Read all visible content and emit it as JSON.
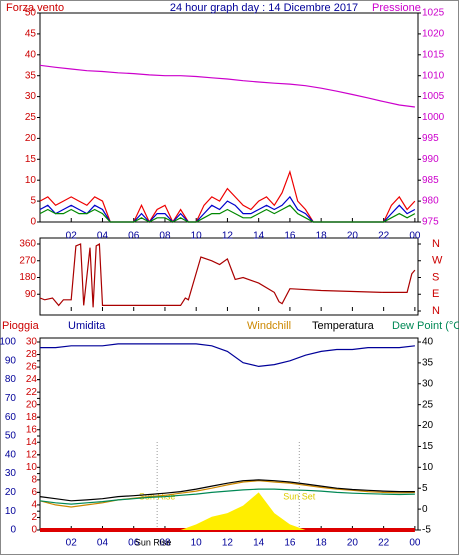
{
  "chart_data": [
    {
      "type": "line",
      "title": "24 hour graph day : 14 Dicembre 2017",
      "xlim": [
        0,
        24.2
      ],
      "xticks": [
        {
          "value": 2,
          "label": "02"
        },
        {
          "value": 4,
          "label": "04"
        },
        {
          "value": 6,
          "label": "06"
        },
        {
          "value": 8,
          "label": "08"
        },
        10,
        12,
        14,
        16,
        18,
        20,
        22,
        {
          "value": 24,
          "label": "00"
        }
      ],
      "ylim": [
        0,
        50
      ],
      "yticks": [
        0,
        5,
        10,
        15,
        20,
        25,
        30,
        35,
        40,
        45,
        50
      ],
      "ytick_color": "#cc0000",
      "y2lim": [
        975,
        1025
      ],
      "y2ticks": [
        975,
        980,
        985,
        990,
        995,
        1000,
        1005,
        1010,
        1015,
        1020,
        1025
      ],
      "y2tick_color": "#cc00cc",
      "series": [
        {
          "name": "Forza vento",
          "color": "#ee0000",
          "x": [
            0,
            0.5,
            1,
            1.5,
            2,
            2.5,
            3,
            3.5,
            4,
            4.5,
            5,
            5.5,
            6,
            6.5,
            7,
            7.5,
            8,
            8.5,
            9,
            9.5,
            10,
            10.5,
            11,
            11.5,
            12,
            12.5,
            13,
            13.5,
            14,
            14.5,
            15,
            15.5,
            16,
            16.5,
            17,
            17.5,
            18,
            18.5,
            19,
            19.5,
            20,
            20.5,
            21,
            21.5,
            22,
            22.5,
            23,
            23.5,
            24
          ],
          "values": [
            5,
            6,
            4,
            5,
            6,
            5,
            4,
            6,
            5,
            0,
            0,
            0,
            0,
            4,
            0,
            3,
            4,
            0,
            3,
            0,
            0,
            4,
            6,
            5,
            8,
            6,
            4,
            3,
            5,
            6,
            4,
            7,
            12,
            5,
            3,
            0,
            0,
            0,
            0,
            0,
            0,
            0,
            0,
            0,
            0,
            4,
            6,
            3,
            5
          ]
        },
        {
          "color": "#0000cc",
          "x": [
            0,
            0.5,
            1,
            1.5,
            2,
            2.5,
            3,
            3.5,
            4,
            4.5,
            5,
            5.5,
            6,
            6.5,
            7,
            7.5,
            8,
            8.5,
            9,
            9.5,
            10,
            10.5,
            11,
            11.5,
            12,
            12.5,
            13,
            13.5,
            14,
            14.5,
            15,
            15.5,
            16,
            16.5,
            17,
            17.5,
            18,
            18.5,
            19,
            19.5,
            20,
            20.5,
            21,
            21.5,
            22,
            22.5,
            23,
            23.5,
            24
          ],
          "values": [
            3,
            4,
            2,
            3,
            4,
            3,
            2,
            4,
            3,
            0,
            0,
            0,
            0,
            2,
            0,
            2,
            2,
            0,
            2,
            0,
            0,
            2,
            4,
            3,
            5,
            4,
            2,
            2,
            3,
            4,
            3,
            4,
            6,
            3,
            2,
            0,
            0,
            0,
            0,
            0,
            0,
            0,
            0,
            0,
            0,
            2,
            4,
            2,
            3
          ]
        },
        {
          "color": "#008800",
          "x": [
            0,
            0.5,
            1,
            1.5,
            2,
            2.5,
            3,
            3.5,
            4,
            4.5,
            5,
            5.5,
            6,
            6.5,
            7,
            7.5,
            8,
            8.5,
            9,
            9.5,
            10,
            10.5,
            11,
            11.5,
            12,
            12.5,
            13,
            13.5,
            14,
            14.5,
            15,
            15.5,
            16,
            16.5,
            17,
            17.5,
            18,
            18.5,
            19,
            19.5,
            20,
            20.5,
            21,
            21.5,
            22,
            22.5,
            23,
            23.5,
            24
          ],
          "values": [
            2,
            3,
            2,
            2,
            3,
            2,
            2,
            3,
            2,
            0,
            0,
            0,
            0,
            1,
            0,
            1,
            1,
            0,
            1,
            0,
            0,
            1,
            2,
            2,
            3,
            2,
            1,
            1,
            2,
            3,
            2,
            3,
            4,
            2,
            1,
            0,
            0,
            0,
            0,
            0,
            0,
            0,
            0,
            0,
            0,
            1,
            2,
            1,
            2
          ]
        },
        {
          "name": "Pressione",
          "color": "#cc00cc",
          "axis": "y2",
          "x": [
            0,
            1,
            2,
            3,
            4,
            5,
            6,
            7,
            8,
            9,
            10,
            11,
            12,
            13,
            14,
            15,
            16,
            17,
            18,
            19,
            20,
            21,
            22,
            23,
            24
          ],
          "values": [
            1012.5,
            1012,
            1011.6,
            1011.2,
            1011,
            1010.7,
            1010.5,
            1010.2,
            1010,
            1010,
            1009.8,
            1009.5,
            1009.2,
            1008.8,
            1008.5,
            1008.2,
            1008,
            1007.6,
            1007,
            1006.3,
            1005.5,
            1004.7,
            1003.8,
            1003,
            1002.5
          ]
        }
      ]
    },
    {
      "type": "line",
      "xlim": [
        0,
        24.2
      ],
      "xticks": [
        {
          "value": 2,
          "label": "02"
        },
        {
          "value": 4,
          "label": "04"
        },
        {
          "value": 6,
          "label": "06"
        },
        {
          "value": 8,
          "label": "08"
        },
        10,
        12,
        14,
        16,
        18,
        20,
        22,
        {
          "value": 24,
          "label": "00"
        }
      ],
      "ylim": [
        0,
        360
      ],
      "yticks": [
        90,
        180,
        270,
        360
      ],
      "ytick_color": "#cc0000",
      "y2lim": [
        0,
        360
      ],
      "y2ticks": [
        {
          "value": 360,
          "label": "N"
        },
        {
          "value": 270,
          "label": "W"
        },
        {
          "value": 180,
          "label": "S"
        },
        {
          "value": 90,
          "label": "E"
        },
        {
          "value": 0,
          "label": "N"
        }
      ],
      "y2tick_color": "#cc0000",
      "series": [
        {
          "color": "#aa0000",
          "x": [
            0,
            0.3,
            0.8,
            1.2,
            1.5,
            2,
            2.3,
            2.6,
            2.8,
            3.2,
            3.4,
            3.6,
            3.8,
            4,
            6,
            9,
            9.3,
            9.5,
            10.3,
            11,
            11.5,
            12,
            12.5,
            13,
            14,
            15,
            15.3,
            15.5,
            16,
            18,
            22,
            23.5,
            23.8,
            24
          ],
          "values": [
            70,
            60,
            70,
            30,
            60,
            60,
            350,
            360,
            30,
            340,
            20,
            350,
            360,
            30,
            30,
            30,
            70,
            60,
            290,
            270,
            250,
            280,
            170,
            180,
            150,
            100,
            50,
            40,
            120,
            110,
            100,
            100,
            200,
            220
          ]
        }
      ]
    },
    {
      "type": "line",
      "xlim": [
        0,
        24.2
      ],
      "xticks": [
        {
          "value": 2,
          "label": "02"
        },
        {
          "value": 4,
          "label": "04"
        },
        {
          "value": 6,
          "label": "06"
        },
        {
          "value": 8,
          "label": "08"
        },
        10,
        12,
        14,
        16,
        18,
        20,
        22,
        {
          "value": 24,
          "label": "00"
        }
      ],
      "ylim": [
        0,
        100
      ],
      "yticks": [
        0,
        10,
        20,
        30,
        40,
        50,
        60,
        70,
        80,
        90,
        100
      ],
      "ytick_color": "#000099",
      "rlim": [
        0,
        30
      ],
      "rticks": [
        0,
        2,
        4,
        6,
        8,
        10,
        12,
        14,
        16,
        18,
        20,
        22,
        24,
        26,
        28,
        30
      ],
      "rtick_color": "#cc0000",
      "y2lim": [
        -5,
        40
      ],
      "y2ticks": [
        -5,
        0,
        5,
        10,
        15,
        20,
        25,
        30,
        35,
        40
      ],
      "y2tick_color": "#000000",
      "annotations": [
        {
          "text": "Sun Rise",
          "x": 7.5
        },
        {
          "text": "Sun Set",
          "x": 16.6
        }
      ],
      "series": [
        {
          "name": "Pioggia",
          "color": "#dd0000",
          "axis": "r",
          "x": [
            0,
            1,
            2,
            3,
            4,
            5,
            6,
            7,
            8,
            9,
            10,
            11,
            12,
            13,
            14,
            15,
            16,
            17,
            18,
            19,
            20,
            21,
            22,
            23,
            24
          ],
          "values": [
            0,
            0,
            0,
            0,
            0,
            0,
            0,
            0,
            0,
            0,
            0,
            0,
            0,
            0,
            0,
            0,
            0,
            0,
            0,
            0,
            0,
            0,
            0,
            0,
            0
          ]
        },
        {
          "name": "Umidita",
          "color": "#000099",
          "x": [
            0,
            1,
            2,
            3,
            4,
            5,
            6,
            7,
            8,
            9,
            10,
            11,
            12,
            13,
            14,
            15,
            16,
            17,
            18,
            19,
            20,
            21,
            22,
            23,
            24
          ],
          "values": [
            97,
            97,
            98,
            98,
            98,
            99,
            99,
            99,
            99,
            99,
            99,
            98,
            95,
            89,
            87,
            88,
            90,
            93,
            95,
            96,
            96,
            97,
            97,
            97,
            98
          ]
        },
        {
          "color": "#ffee00",
          "area": true,
          "x": [
            0,
            1,
            2,
            3,
            4,
            5,
            6,
            7,
            8,
            9,
            10,
            11,
            12,
            13,
            14,
            15,
            16,
            17,
            18,
            19,
            20,
            21,
            22,
            23,
            24
          ],
          "values": [
            0,
            0,
            0,
            0,
            0,
            0,
            0,
            0,
            0,
            0,
            3,
            7,
            9,
            13,
            20,
            9,
            3,
            0,
            0,
            0,
            0,
            0,
            0,
            0,
            0
          ]
        },
        {
          "name": "Windchill",
          "color": "#cc8800",
          "axis": "y2",
          "x": [
            0,
            1,
            2,
            3,
            4,
            5,
            6,
            7,
            8,
            9,
            10,
            11,
            12,
            13,
            14,
            15,
            16,
            17,
            18,
            19,
            20,
            21,
            22,
            23,
            24
          ],
          "values": [
            2,
            1,
            0.5,
            1,
            1.5,
            2.2,
            2.6,
            3,
            3.3,
            3.8,
            4.3,
            5,
            5.8,
            6.5,
            6.8,
            6.5,
            6.2,
            5.7,
            5.2,
            4.8,
            4.5,
            4.2,
            4,
            3.9,
            4
          ]
        },
        {
          "name": "Temperatura",
          "color": "#000000",
          "axis": "y2",
          "x": [
            0,
            1,
            2,
            3,
            4,
            5,
            6,
            7,
            8,
            9,
            10,
            11,
            12,
            13,
            14,
            15,
            16,
            17,
            18,
            19,
            20,
            21,
            22,
            23,
            24
          ],
          "values": [
            3,
            2.5,
            2,
            2.2,
            2.5,
            3,
            3.2,
            3.5,
            3.8,
            4.2,
            4.8,
            5.5,
            6.2,
            6.8,
            7,
            6.8,
            6.5,
            6,
            5.5,
            5,
            4.7,
            4.5,
            4.3,
            4.2,
            4.2
          ]
        },
        {
          "name": "Dew Point (°C",
          "color": "#008855",
          "axis": "y2",
          "x": [
            0,
            1,
            2,
            3,
            4,
            5,
            6,
            7,
            8,
            9,
            10,
            11,
            12,
            13,
            14,
            15,
            16,
            17,
            18,
            19,
            20,
            21,
            22,
            23,
            24
          ],
          "values": [
            2,
            1.5,
            1.2,
            1.5,
            1.8,
            2.2,
            2.5,
            2.8,
            3,
            3.3,
            3.6,
            4,
            4.3,
            4.6,
            4.8,
            4.8,
            4.6,
            4.5,
            4.3,
            4,
            3.8,
            3.7,
            3.6,
            3.5,
            3.6
          ]
        }
      ]
    }
  ]
}
